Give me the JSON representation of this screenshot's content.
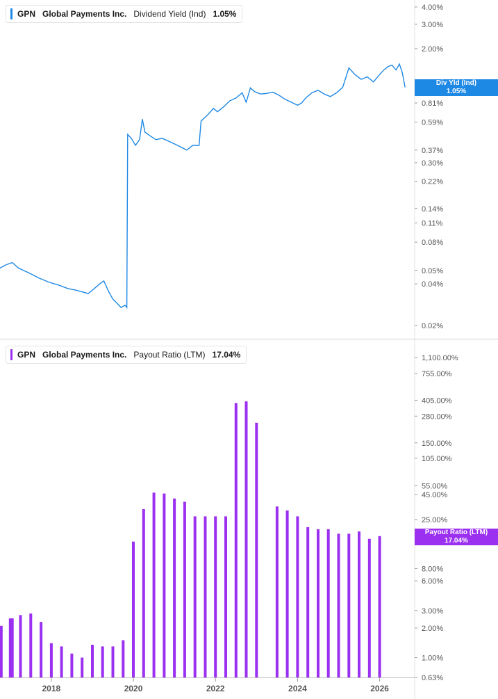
{
  "colors": {
    "yield_line": "#1e88e5",
    "payout_bar": "#9b30f0",
    "axis": "#555555",
    "divider": "#cfcfcf"
  },
  "top_panel": {
    "legend": {
      "ticker": "GPN",
      "company": "Global Payments Inc.",
      "metric": "Dividend Yield (Ind)",
      "value": "1.05%"
    },
    "last_tag": {
      "label": "Div Yld (Ind)",
      "value": "1.05%"
    }
  },
  "bottom_panel": {
    "legend": {
      "ticker": "GPN",
      "company": "Global Payments Inc.",
      "metric": "Payout Ratio (LTM)",
      "value": "17.04%"
    },
    "last_tag": {
      "label": "Payout Ratio (LTM)",
      "value": "17.04%"
    }
  },
  "chart_data": [
    {
      "type": "line",
      "name": "Dividend Yield (Ind)",
      "scale": "log",
      "ylim": [
        0.02,
        4.0
      ],
      "xlim": [
        2016.75,
        2026.65
      ],
      "y_ticks": [
        "4.00%",
        "3.00%",
        "2.00%",
        "0.81%",
        "0.59%",
        "0.37%",
        "0.30%",
        "0.22%",
        "0.14%",
        "0.11%",
        "0.08%",
        "0.05%",
        "0.04%",
        "0.02%"
      ],
      "y_tick_values": [
        4.0,
        3.0,
        2.0,
        0.81,
        0.59,
        0.37,
        0.3,
        0.22,
        0.14,
        0.11,
        0.08,
        0.05,
        0.04,
        0.02
      ],
      "points": [
        [
          2016.75,
          0.052
        ],
        [
          2016.9,
          0.055
        ],
        [
          2017.05,
          0.057
        ],
        [
          2017.2,
          0.052
        ],
        [
          2017.45,
          0.048
        ],
        [
          2017.7,
          0.044
        ],
        [
          2017.95,
          0.041
        ],
        [
          2018.2,
          0.039
        ],
        [
          2018.4,
          0.037
        ],
        [
          2018.6,
          0.036
        ],
        [
          2018.75,
          0.035
        ],
        [
          2018.9,
          0.034
        ],
        [
          2019.05,
          0.037
        ],
        [
          2019.18,
          0.04
        ],
        [
          2019.28,
          0.042
        ],
        [
          2019.4,
          0.035
        ],
        [
          2019.5,
          0.031
        ],
        [
          2019.6,
          0.029
        ],
        [
          2019.7,
          0.027
        ],
        [
          2019.8,
          0.028
        ],
        [
          2019.84,
          0.027
        ],
        [
          2019.86,
          0.48
        ],
        [
          2019.95,
          0.45
        ],
        [
          2020.05,
          0.4
        ],
        [
          2020.15,
          0.44
        ],
        [
          2020.22,
          0.62
        ],
        [
          2020.28,
          0.5
        ],
        [
          2020.4,
          0.47
        ],
        [
          2020.55,
          0.44
        ],
        [
          2020.7,
          0.45
        ],
        [
          2020.85,
          0.43
        ],
        [
          2021.0,
          0.41
        ],
        [
          2021.15,
          0.39
        ],
        [
          2021.3,
          0.37
        ],
        [
          2021.45,
          0.4
        ],
        [
          2021.6,
          0.4
        ],
        [
          2021.65,
          0.6
        ],
        [
          2021.8,
          0.66
        ],
        [
          2021.95,
          0.74
        ],
        [
          2022.05,
          0.7
        ],
        [
          2022.2,
          0.76
        ],
        [
          2022.35,
          0.84
        ],
        [
          2022.5,
          0.88
        ],
        [
          2022.65,
          0.96
        ],
        [
          2022.75,
          0.82
        ],
        [
          2022.85,
          1.04
        ],
        [
          2022.95,
          0.98
        ],
        [
          2023.1,
          0.94
        ],
        [
          2023.25,
          0.95
        ],
        [
          2023.4,
          0.97
        ],
        [
          2023.55,
          0.92
        ],
        [
          2023.7,
          0.86
        ],
        [
          2023.85,
          0.82
        ],
        [
          2024.0,
          0.78
        ],
        [
          2024.1,
          0.81
        ],
        [
          2024.2,
          0.88
        ],
        [
          2024.35,
          0.96
        ],
        [
          2024.5,
          1.0
        ],
        [
          2024.65,
          0.94
        ],
        [
          2024.8,
          0.9
        ],
        [
          2024.95,
          0.96
        ],
        [
          2025.1,
          1.05
        ],
        [
          2025.25,
          1.45
        ],
        [
          2025.4,
          1.3
        ],
        [
          2025.55,
          1.2
        ],
        [
          2025.7,
          1.25
        ],
        [
          2025.85,
          1.15
        ],
        [
          2026.0,
          1.3
        ],
        [
          2026.1,
          1.4
        ],
        [
          2026.2,
          1.48
        ],
        [
          2026.3,
          1.52
        ],
        [
          2026.4,
          1.4
        ],
        [
          2026.48,
          1.55
        ],
        [
          2026.55,
          1.35
        ],
        [
          2026.62,
          1.05
        ]
      ]
    },
    {
      "type": "bar",
      "name": "Payout Ratio (LTM)",
      "scale": "log",
      "ylim": [
        0.63,
        1100.0
      ],
      "xlim": [
        2016.75,
        2026.65
      ],
      "y_ticks": [
        "1,100.00%",
        "755.00%",
        "405.00%",
        "280.00%",
        "150.00%",
        "105.00%",
        "55.00%",
        "45.00%",
        "25.00%",
        "8.00%",
        "6.00%",
        "3.00%",
        "2.00%",
        "1.00%",
        "0.63%"
      ],
      "y_tick_values": [
        1100,
        755,
        405,
        280,
        150,
        105,
        55,
        45,
        25,
        8,
        6,
        3,
        2,
        1,
        0.63
      ],
      "x_ticks": [
        "2018",
        "2020",
        "2022",
        "2024",
        "2026"
      ],
      "x_tick_values": [
        2018,
        2020,
        2022,
        2024,
        2026
      ],
      "bars": [
        [
          2016.78,
          2.1
        ],
        [
          2017.0,
          2.5
        ],
        [
          2017.05,
          2.5
        ],
        [
          2017.25,
          2.7
        ],
        [
          2017.5,
          2.8
        ],
        [
          2017.75,
          2.3
        ],
        [
          2018.0,
          1.4
        ],
        [
          2018.25,
          1.3
        ],
        [
          2018.5,
          1.1
        ],
        [
          2018.75,
          1.0
        ],
        [
          2019.0,
          1.35
        ],
        [
          2019.25,
          1.3
        ],
        [
          2019.5,
          1.3
        ],
        [
          2019.75,
          1.5
        ],
        [
          2020.0,
          15.0
        ],
        [
          2020.25,
          32.0
        ],
        [
          2020.5,
          47.0
        ],
        [
          2020.75,
          46.0
        ],
        [
          2021.0,
          41.0
        ],
        [
          2021.25,
          38.0
        ],
        [
          2021.5,
          27.0
        ],
        [
          2021.75,
          27.0
        ],
        [
          2022.0,
          27.0
        ],
        [
          2022.25,
          27.0
        ],
        [
          2022.5,
          380.0
        ],
        [
          2022.75,
          395.0
        ],
        [
          2023.0,
          240.0
        ],
        [
          2023.5,
          34.0
        ],
        [
          2023.75,
          31.0
        ],
        [
          2024.0,
          27.0
        ],
        [
          2024.25,
          21.0
        ],
        [
          2024.5,
          20.0
        ],
        [
          2024.75,
          20.0
        ],
        [
          2025.0,
          18.0
        ],
        [
          2025.25,
          18.0
        ],
        [
          2025.5,
          19.0
        ],
        [
          2025.75,
          16.0
        ],
        [
          2026.0,
          17.04
        ]
      ]
    }
  ]
}
